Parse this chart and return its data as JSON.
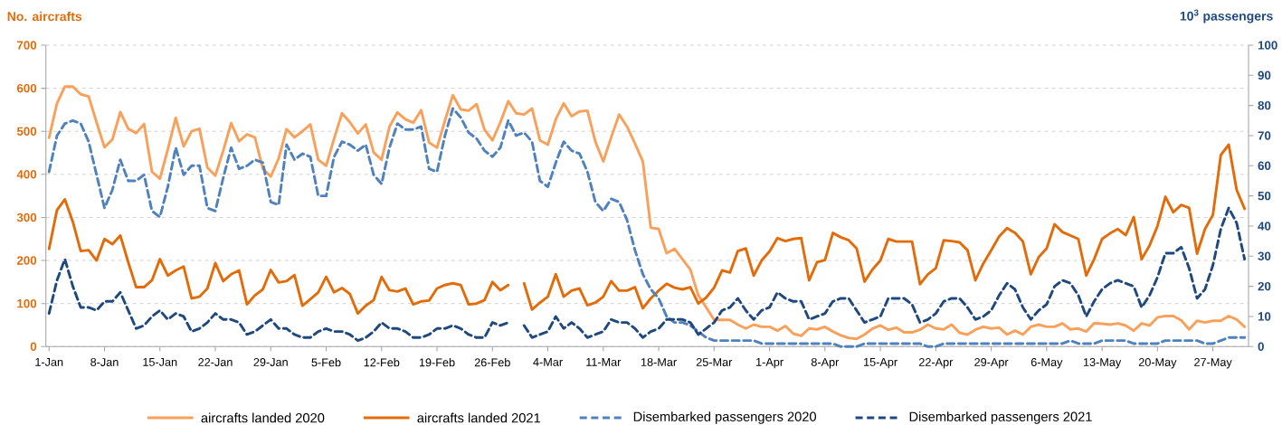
{
  "chart_data": {
    "type": "line",
    "ylabel": "No. aircrafts",
    "y2label": "10$^{3}$ passengers",
    "categories": [
      "1-Jan",
      null,
      null,
      null,
      null,
      null,
      null,
      "8-Jan",
      null,
      null,
      null,
      null,
      null,
      null,
      "15-Jan",
      null,
      null,
      null,
      null,
      null,
      null,
      "22-Jan",
      null,
      null,
      null,
      null,
      null,
      null,
      "29-Jan",
      null,
      null,
      null,
      null,
      null,
      null,
      "5-Feb",
      null,
      null,
      null,
      null,
      null,
      null,
      "12-Feb",
      null,
      null,
      null,
      null,
      null,
      null,
      "19-Feb",
      null,
      null,
      null,
      null,
      null,
      null,
      "26-Feb",
      null,
      null,
      null,
      null,
      null,
      null,
      "4-Mar",
      null,
      null,
      null,
      null,
      null,
      null,
      "11-Mar",
      null,
      null,
      null,
      null,
      null,
      null,
      "18-Mar",
      null,
      null,
      null,
      null,
      null,
      null,
      "25-Mar",
      null,
      null,
      null,
      null,
      null,
      null,
      "1-Apr",
      null,
      null,
      null,
      null,
      null,
      null,
      "8-Apr",
      null,
      null,
      null,
      null,
      null,
      null,
      "15-Apr",
      null,
      null,
      null,
      null,
      null,
      null,
      "22-Apr",
      null,
      null,
      null,
      null,
      null,
      null,
      "29-Apr",
      null,
      null,
      null,
      null,
      null,
      null,
      "6-May",
      null,
      null,
      null,
      null,
      null,
      null,
      "13-May",
      null,
      null,
      null,
      null,
      null,
      null,
      "20-May",
      null,
      null,
      null,
      null,
      null,
      null,
      "27-May",
      null,
      null,
      null,
      null
    ],
    "series": [
      {
        "name": "aircrafts landed 2020",
        "color": "#f9a05a",
        "line_style": "solid",
        "values": [
          485,
          565,
          604,
          604,
          586,
          581,
          521,
          463,
          481,
          545,
          506,
          496,
          517,
          406,
          390,
          458,
          531,
          465,
          500,
          506,
          416,
          397,
          455,
          519,
          477,
          493,
          486,
          413,
          395,
          437,
          505,
          486,
          500,
          516,
          434,
          420,
          483,
          542,
          521,
          495,
          516,
          451,
          434,
          511,
          544,
          528,
          520,
          549,
          474,
          462,
          525,
          584,
          551,
          548,
          563,
          504,
          479,
          521,
          570,
          542,
          539,
          553,
          479,
          469,
          528,
          565,
          535,
          546,
          548,
          476,
          430,
          486,
          539,
          511,
          472,
          430,
          276,
          273,
          217,
          227,
          203,
          179,
          119,
          91,
          62,
          62,
          62,
          51,
          42,
          51,
          46,
          46,
          37,
          48,
          30,
          25,
          42,
          40,
          46,
          35,
          26,
          20,
          18,
          28,
          42,
          49,
          39,
          44,
          33,
          33,
          39,
          51,
          42,
          40,
          51,
          32,
          28,
          39,
          46,
          42,
          44,
          28,
          37,
          28,
          46,
          51,
          46,
          46,
          54,
          40,
          42,
          35,
          54,
          53,
          51,
          54,
          49,
          37,
          54,
          49,
          68,
          71,
          71,
          61,
          40,
          60,
          56,
          60,
          60,
          71,
          63,
          46
        ]
      },
      {
        "name": "aircrafts landed 2021",
        "color": "#e36c0a",
        "line_style": "solid",
        "values": [
          227,
          317,
          342,
          290,
          222,
          224,
          200,
          250,
          238,
          258,
          196,
          138,
          138,
          154,
          203,
          165,
          177,
          186,
          112,
          116,
          135,
          194,
          152,
          168,
          177,
          98,
          119,
          133,
          178,
          149,
          152,
          166,
          95,
          110,
          126,
          162,
          126,
          136,
          122,
          77,
          95,
          108,
          162,
          131,
          128,
          135,
          98,
          105,
          107,
          135,
          143,
          147,
          143,
          98,
          100,
          108,
          150,
          131,
          143,
          null,
          147,
          86,
          102,
          116,
          168,
          116,
          130,
          135,
          96,
          102,
          116,
          152,
          130,
          130,
          138,
          89,
          112,
          130,
          146,
          137,
          133,
          138,
          100,
          114,
          137,
          177,
          172,
          222,
          228,
          165,
          200,
          221,
          252,
          245,
          250,
          252,
          154,
          196,
          201,
          264,
          254,
          247,
          228,
          151,
          179,
          200,
          250,
          244,
          244,
          244,
          145,
          168,
          182,
          247,
          245,
          242,
          224,
          154,
          193,
          224,
          256,
          275,
          264,
          244,
          168,
          208,
          228,
          284,
          266,
          258,
          250,
          165,
          203,
          250,
          263,
          273,
          259,
          301,
          203,
          235,
          280,
          348,
          312,
          329,
          322,
          216,
          273,
          306,
          445,
          469,
          364,
          320
        ]
      },
      {
        "name": "Disembarked passengers 2020",
        "color": "#4f81bd",
        "line_style": "dashed",
        "axis": "y2",
        "values": [
          58,
          70,
          74,
          75,
          74,
          68,
          57,
          46,
          52,
          62,
          55,
          55,
          57,
          45,
          43,
          53,
          66,
          57,
          60,
          60,
          46,
          45,
          56,
          66,
          59,
          60,
          62,
          61,
          48,
          47,
          67,
          62,
          64,
          63,
          50,
          50,
          63,
          68,
          67,
          65,
          67,
          57,
          54,
          66,
          74,
          72,
          72,
          73,
          59,
          58,
          70,
          79,
          76,
          71,
          69,
          65,
          63,
          66,
          75,
          70,
          71,
          68,
          55,
          53,
          61,
          68,
          65,
          64,
          58,
          48,
          45,
          49,
          48,
          42,
          32,
          24,
          19,
          16,
          10,
          8,
          8,
          7,
          5,
          3,
          2,
          2,
          2,
          2,
          2,
          2,
          1,
          1,
          1,
          1,
          1,
          1,
          1,
          1,
          1,
          1,
          0,
          0,
          0,
          1,
          1,
          1,
          1,
          1,
          1,
          1,
          1,
          0,
          0,
          1,
          1,
          1,
          1,
          1,
          1,
          1,
          1,
          1,
          1,
          1,
          1,
          1,
          1,
          1,
          1,
          2,
          1,
          1,
          1,
          2,
          2,
          2,
          2,
          1,
          1,
          1,
          1,
          2,
          2,
          2,
          2,
          2,
          1,
          1,
          2,
          3,
          3,
          3
        ]
      },
      {
        "name": "Disembarked passengers 2021",
        "color": "#1f497d",
        "line_style": "dashed",
        "axis": "y2",
        "values": [
          11,
          22,
          29,
          20,
          13,
          13,
          12,
          15,
          15,
          18,
          12,
          6,
          7,
          10,
          12,
          9,
          11,
          10,
          5,
          6,
          8,
          11,
          9,
          9,
          8,
          4,
          5,
          7,
          9,
          6,
          6,
          4,
          3,
          3,
          5,
          6,
          5,
          5,
          4,
          2,
          3,
          5,
          8,
          6,
          6,
          5,
          3,
          3,
          4,
          6,
          6,
          7,
          6,
          4,
          3,
          3,
          8,
          7,
          8,
          null,
          7,
          3,
          4,
          5,
          10,
          6,
          8,
          6,
          3,
          4,
          5,
          9,
          8,
          8,
          6,
          3,
          5,
          6,
          9,
          9,
          9,
          8,
          4,
          6,
          8,
          12,
          13,
          16,
          12,
          9,
          12,
          13,
          18,
          16,
          15,
          15,
          9,
          10,
          11,
          15,
          16,
          16,
          12,
          8,
          9,
          10,
          16,
          16,
          16,
          14,
          8,
          9,
          11,
          15,
          16,
          16,
          13,
          9,
          10,
          12,
          17,
          21,
          19,
          13,
          9,
          12,
          14,
          20,
          22,
          21,
          17,
          10,
          15,
          19,
          21,
          22,
          21,
          20,
          13,
          17,
          23,
          31,
          31,
          33,
          26,
          16,
          19,
          27,
          39,
          46,
          41,
          29
        ]
      }
    ],
    "ylim": [
      0,
      700
    ],
    "yticks": [
      0,
      100,
      200,
      300,
      400,
      500,
      600,
      700
    ],
    "y2lim": [
      0,
      100
    ],
    "y2ticks": [
      0,
      10,
      20,
      30,
      40,
      50,
      60,
      70,
      80,
      90,
      100
    ],
    "grid": "y",
    "legend": "bottom"
  }
}
